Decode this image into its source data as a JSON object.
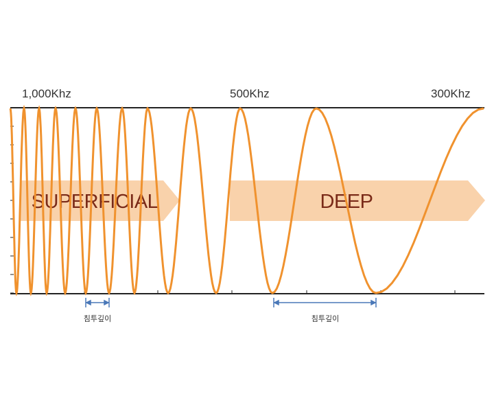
{
  "frequency_labels": [
    "1,000Khz",
    "500Khz",
    "300Khz"
  ],
  "zones": [
    "SUPERFICIAL",
    "DEEP"
  ],
  "depth_labels": [
    "침투깊이",
    "침투깊이"
  ]
}
